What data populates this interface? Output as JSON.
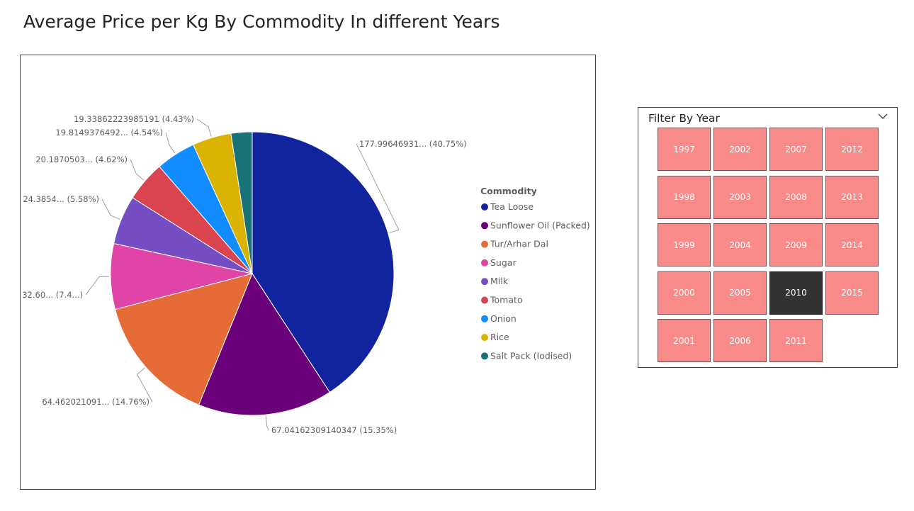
{
  "page": {
    "title": "Average Price per Kg By Commodity In different Years"
  },
  "chart_data": {
    "type": "pie",
    "title": "",
    "legend_title": "Commodity",
    "legend_position": "right",
    "slices": [
      {
        "name": "Tea Loose",
        "value": 177.99646931,
        "percent": 40.75,
        "label": "177.99646931... (40.75%)",
        "color": "#12239e"
      },
      {
        "name": "Sunflower Oil (Packed)",
        "value": 67.04162309140347,
        "percent": 15.35,
        "label": "67.04162309140347 (15.35%)",
        "color": "#6b007b"
      },
      {
        "name": "Tur/Arhar Dal",
        "value": 64.462021091,
        "percent": 14.76,
        "label": "64.462021091... (14.76%)",
        "color": "#e66c37"
      },
      {
        "name": "Sugar",
        "value": 32.6,
        "percent": 7.46,
        "label": "32.60... (7.4...)",
        "color": "#e044a7"
      },
      {
        "name": "Milk",
        "value": 24.3854,
        "percent": 5.58,
        "label": "24.3854... (5.58%)",
        "color": "#744ec2"
      },
      {
        "name": "Tomato",
        "value": 20.1870503,
        "percent": 4.62,
        "label": "20.1870503... (4.62%)",
        "color": "#d9444e"
      },
      {
        "name": "Onion",
        "value": 19.8149376492,
        "percent": 4.54,
        "label": "19.8149376492... (4.54%)",
        "color": "#118dff"
      },
      {
        "name": "Rice",
        "value": 19.33862223985191,
        "percent": 4.43,
        "label": "19.33862223985191 (4.43%)",
        "color": "#d9b300"
      },
      {
        "name": "Salt Pack (Iodised)",
        "value": 10.5,
        "percent": 2.41,
        "label": "",
        "color": "#197278"
      }
    ]
  },
  "slicer": {
    "title": "Filter By Year",
    "chevron_icon": "chevron-down-icon",
    "selected": "2010",
    "tile_color": "#f88a89",
    "selected_color": "#333333",
    "columns": [
      [
        "1997",
        "1998",
        "1999",
        "2000",
        "2001"
      ],
      [
        "2002",
        "2003",
        "2004",
        "2005",
        "2006"
      ],
      [
        "2007",
        "2008",
        "2009",
        "2010",
        "2011"
      ],
      [
        "2012",
        "2013",
        "2014",
        "2015"
      ]
    ]
  }
}
